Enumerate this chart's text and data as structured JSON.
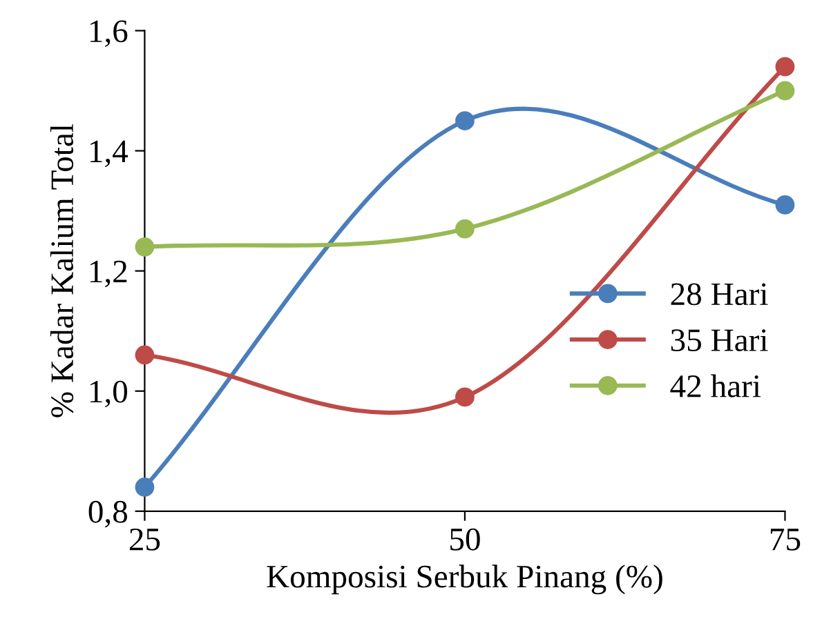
{
  "chart_data": {
    "type": "line",
    "xlabel": "Komposisi Serbuk Pinang (%)",
    "ylabel": "% Kadar Kalium Total",
    "x": [
      25,
      50,
      75
    ],
    "xlim": [
      25,
      75
    ],
    "xticks": [
      25,
      50,
      75
    ],
    "ylim": [
      0.8,
      1.6
    ],
    "yticks": [
      {
        "value": 0.8,
        "label": "0,8"
      },
      {
        "value": 1.0,
        "label": "1,0"
      },
      {
        "value": 1.2,
        "label": "1,2"
      },
      {
        "value": 1.4,
        "label": "1,4"
      },
      {
        "value": 1.6,
        "label": "1,6"
      }
    ],
    "marker": "circle",
    "line_style": "solid",
    "grid": false,
    "legend": "right",
    "series": [
      {
        "name": "28 Hari",
        "color": "#4a7ebb",
        "values": [
          0.84,
          1.45,
          1.31
        ]
      },
      {
        "name": "35 Hari",
        "color": "#be4b48",
        "values": [
          1.06,
          0.99,
          1.54
        ]
      },
      {
        "name": "42 hari",
        "color": "#98b954",
        "values": [
          1.24,
          1.27,
          1.5
        ]
      }
    ]
  }
}
